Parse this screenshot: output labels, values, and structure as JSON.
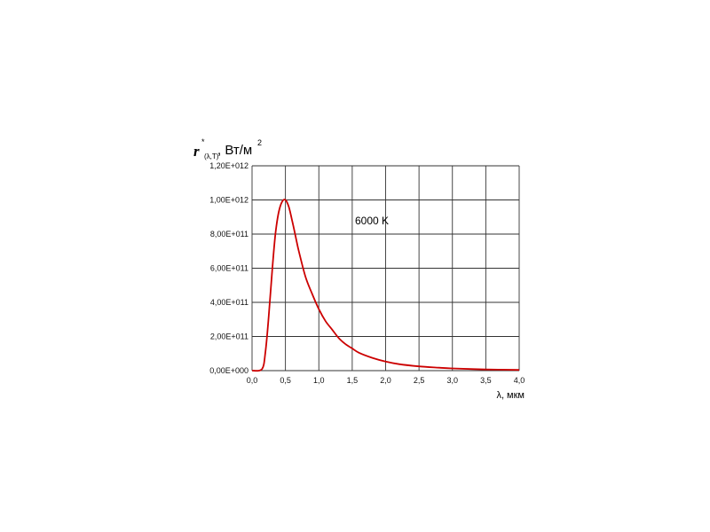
{
  "chart_data": {
    "type": "line",
    "ylabel": {
      "symbol": "r",
      "star": "*",
      "subscript": "(λ,T)",
      "unit": ", Вт/м",
      "unit_power": "2"
    },
    "xlabel": "λ, мкм",
    "annotation": "6000 K",
    "x_ticks": [
      "0,0",
      "0,5",
      "1,0",
      "1,5",
      "2,0",
      "2,5",
      "3,0",
      "3,5",
      "4,0"
    ],
    "y_ticks": [
      "0,00E+000",
      "2,00E+011",
      "4,00E+011",
      "6,00E+011",
      "8,00E+011",
      "1,00E+012",
      "1,20E+012"
    ],
    "xlim": [
      0,
      4
    ],
    "ylim": [
      0,
      1200000000000.0
    ],
    "grid": true,
    "line_color": "#cc0000",
    "series": [
      {
        "x": [
          0.15,
          0.2,
          0.25,
          0.3,
          0.35,
          0.4,
          0.45,
          0.5,
          0.55,
          0.6,
          0.65,
          0.7,
          0.8,
          0.9,
          1.0,
          1.1,
          1.2,
          1.3,
          1.4,
          1.5,
          1.6,
          1.8,
          2.0,
          2.2,
          2.5,
          2.8,
          3.0,
          3.5,
          4.0
        ],
        "y": [
          10000000000.0,
          110000000000.0,
          320000000000.0,
          580000000000.0,
          800000000000.0,
          930000000000.0,
          990000000000.0,
          1000000000000.0,
          960000000000.0,
          880000000000.0,
          790000000000.0,
          700000000000.0,
          550000000000.0,
          450000000000.0,
          360000000000.0,
          290000000000.0,
          240000000000.0,
          190000000000.0,
          155000000000.0,
          130000000000.0,
          105000000000.0,
          75000000000.0,
          53000000000.0,
          38000000000.0,
          25000000000.0,
          17000000000.0,
          13000000000.0,
          7000000000.0,
          4000000000.0
        ]
      }
    ]
  }
}
